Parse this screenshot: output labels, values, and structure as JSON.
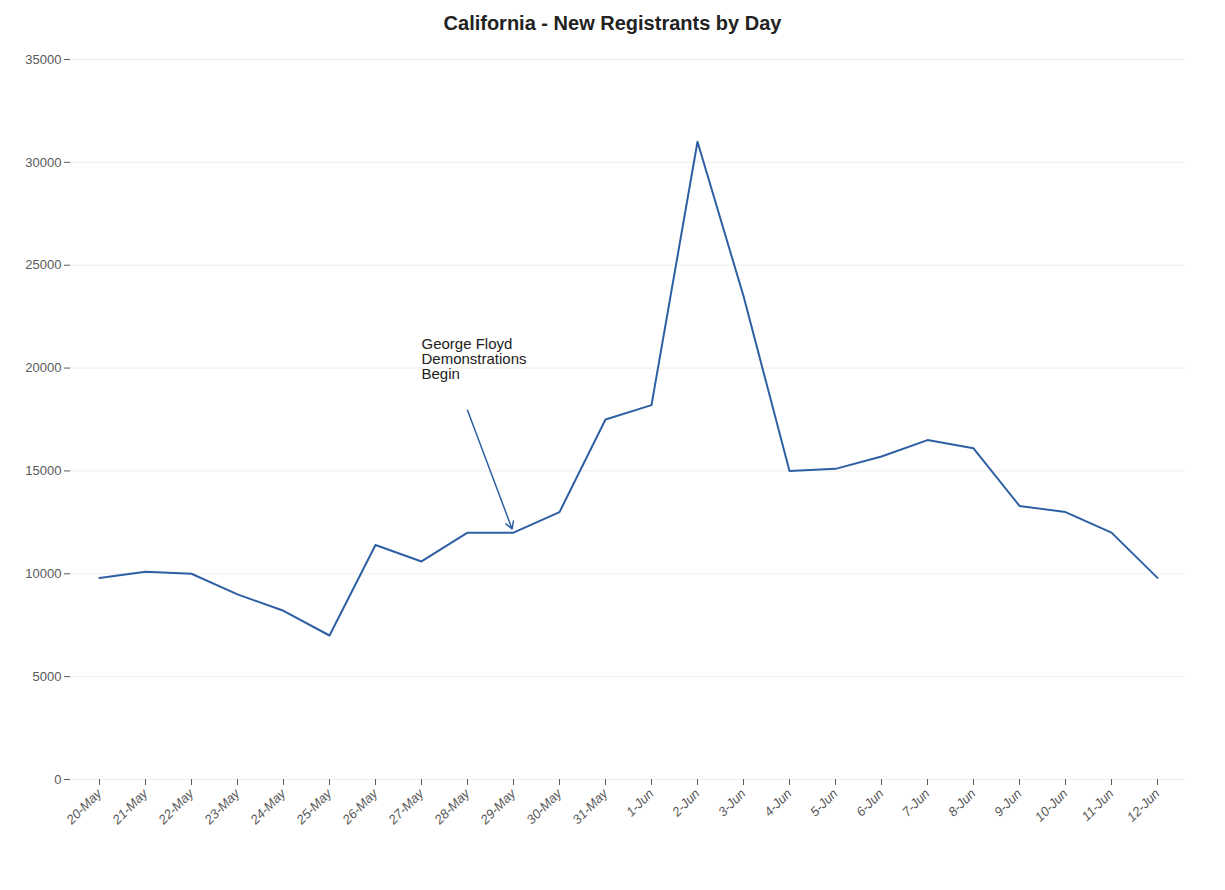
{
  "chart_data": {
    "type": "line",
    "title": "California - New Registrants by Day",
    "categories": [
      "20-May",
      "21-May",
      "22-May",
      "23-May",
      "24-May",
      "25-May",
      "26-May",
      "27-May",
      "28-May",
      "29-May",
      "30-May",
      "31-May",
      "1-Jun",
      "2-Jun",
      "3-Jun",
      "4-Jun",
      "5-Jun",
      "6-Jun",
      "7-Jun",
      "8-Jun",
      "9-Jun",
      "10-Jun",
      "11-Jun",
      "12-Jun"
    ],
    "values": [
      9800,
      10100,
      10000,
      9000,
      8200,
      7000,
      11400,
      10600,
      12000,
      12000,
      13000,
      17500,
      18200,
      31000,
      23500,
      15000,
      15100,
      15700,
      16500,
      16100,
      13300,
      13000,
      12000,
      9800
    ],
    "color": "#2E5FA3",
    "ylim": [
      0,
      35000
    ],
    "yticks": [
      0,
      5000,
      10000,
      15000,
      20000,
      25000,
      30000,
      35000
    ],
    "grid": true,
    "annotations": [
      {
        "text": "George Floyd\nDemonstrations\nBegin",
        "x": "29-May"
      }
    ]
  }
}
